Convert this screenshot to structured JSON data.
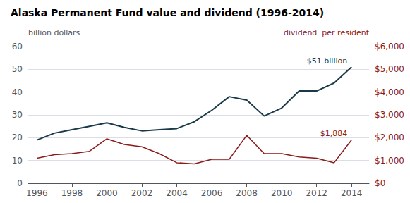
{
  "chart_data": {
    "type": "line",
    "title": "Alaska Permanent Fund value and dividend (1996-2014)",
    "ylabel": "billion dollars",
    "y2label": "dividend  per resident",
    "x": [
      1996,
      1997,
      1998,
      1999,
      2000,
      2001,
      2002,
      2003,
      2004,
      2005,
      2006,
      2007,
      2008,
      2009,
      2010,
      2011,
      2012,
      2013,
      2014
    ],
    "series": [
      {
        "color": "#1a3a4a",
        "values": [
          19,
          22,
          23.5,
          25,
          26.5,
          24.5,
          23,
          23.5,
          24,
          27,
          32,
          38,
          36.5,
          29.5,
          33,
          40.5,
          40.5,
          44,
          51
        ]
      },
      {
        "color": "#8b1a1a",
        "axis": "y2",
        "values": [
          1100,
          1250,
          1300,
          1400,
          1950,
          1700,
          1600,
          1300,
          900,
          850,
          1050,
          1050,
          2100,
          1300,
          1300,
          1150,
          1100,
          900,
          1900
        ]
      }
    ],
    "xlim": [
      1995.5,
      2015.0
    ],
    "xticks": [
      1996,
      1998,
      2000,
      2002,
      2004,
      2006,
      2008,
      2010,
      2012,
      2014
    ],
    "ylim": [
      0,
      60
    ],
    "yticks": [
      0,
      10,
      20,
      30,
      40,
      50,
      60
    ],
    "y2lim": [
      0,
      6000
    ],
    "y2ticks": [
      {
        "value": 0,
        "label": "$0"
      },
      {
        "value": 1000,
        "label": "$1,000"
      },
      {
        "value": 2000,
        "label": "$2,000"
      },
      {
        "value": 3000,
        "label": "$3,000"
      },
      {
        "value": 4000,
        "label": "$4,000"
      },
      {
        "value": 5000,
        "label": "$5,000"
      },
      {
        "value": 6000,
        "label": "$6,000"
      }
    ],
    "grid": true,
    "annotations": [
      {
        "text": "$51 billion",
        "x": 2014,
        "y": 51
      },
      {
        "text": "$1,884",
        "x": 2014,
        "y": 1900,
        "axis": "y2"
      }
    ]
  }
}
